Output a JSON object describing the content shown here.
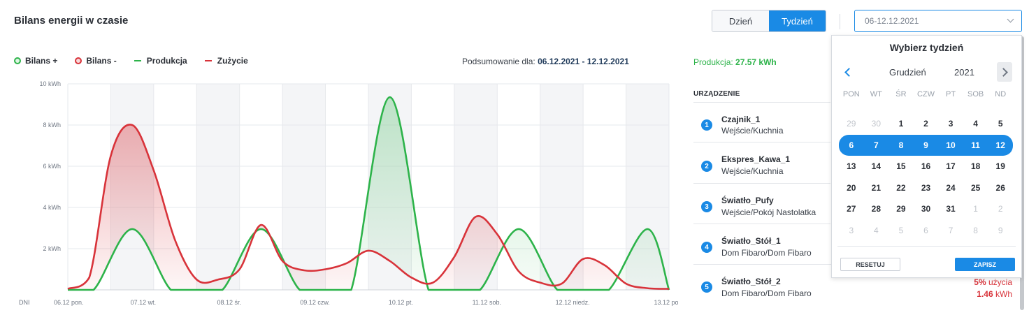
{
  "header": {
    "title": "Bilans energii w czasie",
    "range_tabs": [
      "Dzień",
      "Tydzień"
    ],
    "active_tab": "Tydzień",
    "date_value": "06-12.12.2021"
  },
  "legend": [
    {
      "label": "Bilans +",
      "kind": "dot",
      "color": "#2db34a"
    },
    {
      "label": "Bilans -",
      "kind": "dot",
      "color": "#d8333a"
    },
    {
      "label": "Produkcja",
      "kind": "line",
      "color": "#2db34a"
    },
    {
      "label": "Zużycie",
      "kind": "line",
      "color": "#d8333a"
    }
  ],
  "summary": {
    "label": "Podsumowanie dla:",
    "range": "06.12.2021 - 12.12.2021"
  },
  "production": {
    "label": "Produkcja:",
    "value": "27.57 kWh"
  },
  "colors": {
    "accent": "#1a8ae5",
    "production": "#2db34a",
    "consumption": "#d8333a"
  },
  "chart_data": {
    "type": "area",
    "ylim": [
      0,
      10
    ],
    "y_ticks": [
      "10 kWh",
      "8 kWh",
      "6 kWh",
      "4 kWh",
      "2 kWh"
    ],
    "x_axis_label": "DNI",
    "x_tick_labels": [
      "06.12 pon.",
      "07.12 wt.",
      "08.12 śr.",
      "09.12 czw.",
      "10.12 pt.",
      "11.12 sob.",
      "12.12 niedz.",
      "13.12 pon."
    ],
    "x_range": [
      0,
      14
    ],
    "grid": true,
    "series": [
      {
        "name": "Produkcja",
        "color": "#2db34a",
        "x": [
          0,
          0.6,
          1.5,
          2.4,
          3,
          3.6,
          4.5,
          5.4,
          6,
          6.6,
          7.5,
          8.4,
          9,
          9.6,
          10.5,
          11.4,
          12,
          12.6,
          13.5,
          14
        ],
        "y": [
          0,
          0,
          2.95,
          0,
          0,
          0,
          2.95,
          0,
          0,
          0,
          9.35,
          0,
          0,
          0,
          2.95,
          0,
          0,
          0,
          2.95,
          0
        ]
      },
      {
        "name": "Zużycie",
        "color": "#d8333a",
        "x": [
          0,
          0.5,
          1,
          1.5,
          2,
          2.5,
          3,
          3.5,
          4,
          4.5,
          5,
          5.5,
          6,
          6.5,
          7,
          7.5,
          8,
          8.5,
          9,
          9.5,
          10,
          10.5,
          11,
          11.5,
          12,
          12.5,
          13,
          13.5,
          14
        ],
        "y": [
          0.05,
          0.6,
          6.5,
          8.0,
          5.8,
          2.4,
          0.5,
          0.5,
          1.0,
          3.15,
          1.4,
          0.95,
          1.0,
          1.3,
          1.9,
          1.4,
          0.6,
          0.35,
          1.6,
          3.55,
          2.7,
          0.9,
          0.35,
          0.3,
          1.5,
          1.2,
          0.3,
          0.08,
          0.05
        ]
      }
    ]
  },
  "devices": {
    "header": "URZĄDZENIE",
    "items": [
      {
        "num": "1",
        "name": "Czajnik_1",
        "location": "Wejście/Kuchnia"
      },
      {
        "num": "2",
        "name": "Ekspres_Kawa_1",
        "location": "Wejście/Kuchnia"
      },
      {
        "num": "3",
        "name": "Światło_Pufy",
        "location": "Wejście/Pokój Nastolatka"
      },
      {
        "num": "4",
        "name": "Światło_Stół_1",
        "location": "Dom Fibaro/Dom Fibaro"
      },
      {
        "num": "5",
        "name": "Światło_Stół_2",
        "location": "Dom Fibaro/Dom Fibaro",
        "usage_pct": "5%",
        "usage_label": "użycia",
        "kwh": "1.46",
        "kwh_unit": "kWh"
      }
    ]
  },
  "calendar": {
    "title": "Wybierz tydzień",
    "month": "Grudzień",
    "year": "2021",
    "weekdays": [
      "PON",
      "WT",
      "ŚR",
      "CZW",
      "PT",
      "SOB",
      "ND"
    ],
    "days": [
      {
        "d": "29",
        "m": true
      },
      {
        "d": "30",
        "m": true
      },
      {
        "d": "1"
      },
      {
        "d": "2"
      },
      {
        "d": "3"
      },
      {
        "d": "4"
      },
      {
        "d": "5"
      },
      {
        "d": "6",
        "s": true
      },
      {
        "d": "7",
        "s": true
      },
      {
        "d": "8",
        "s": true
      },
      {
        "d": "9",
        "s": true
      },
      {
        "d": "10",
        "s": true
      },
      {
        "d": "11",
        "s": true
      },
      {
        "d": "12",
        "s": true
      },
      {
        "d": "13"
      },
      {
        "d": "14"
      },
      {
        "d": "15"
      },
      {
        "d": "16"
      },
      {
        "d": "17"
      },
      {
        "d": "18"
      },
      {
        "d": "19"
      },
      {
        "d": "20"
      },
      {
        "d": "21"
      },
      {
        "d": "22"
      },
      {
        "d": "23"
      },
      {
        "d": "24"
      },
      {
        "d": "25"
      },
      {
        "d": "26"
      },
      {
        "d": "27"
      },
      {
        "d": "28"
      },
      {
        "d": "29"
      },
      {
        "d": "30"
      },
      {
        "d": "31"
      },
      {
        "d": "1",
        "m": true
      },
      {
        "d": "2",
        "m": true
      },
      {
        "d": "3",
        "m": true
      },
      {
        "d": "4",
        "m": true
      },
      {
        "d": "5",
        "m": true
      },
      {
        "d": "6",
        "m": true
      },
      {
        "d": "7",
        "m": true
      },
      {
        "d": "8",
        "m": true
      },
      {
        "d": "9",
        "m": true
      }
    ],
    "reset_label": "RESETUJ",
    "save_label": "ZAPISZ"
  }
}
